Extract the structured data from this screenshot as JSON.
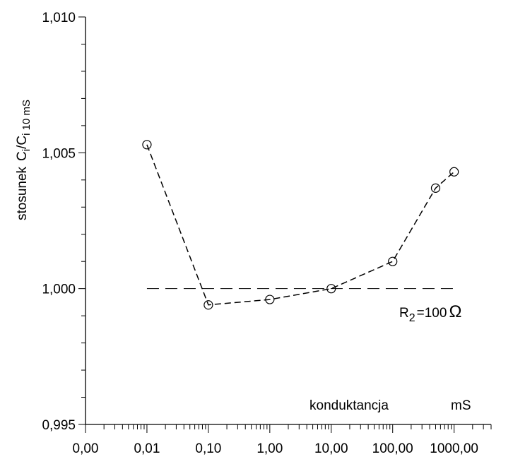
{
  "chart_data": {
    "type": "line",
    "x_scale": "log10",
    "x_ticks": [
      {
        "value": 0.001,
        "label": "0,00"
      },
      {
        "value": 0.01,
        "label": "0,01"
      },
      {
        "value": 0.1,
        "label": "0,10"
      },
      {
        "value": 1,
        "label": "1,00"
      },
      {
        "value": 10,
        "label": "10,00"
      },
      {
        "value": 100,
        "label": "100,00"
      },
      {
        "value": 1000,
        "label": "1000,00"
      }
    ],
    "xlim": [
      0.001,
      4000
    ],
    "ylim": [
      0.995,
      1.01
    ],
    "y_ticks": [
      {
        "value": 0.995,
        "label": "0,995"
      },
      {
        "value": 1.0,
        "label": "1,000"
      },
      {
        "value": 1.005,
        "label": "1,005"
      },
      {
        "value": 1.01,
        "label": "1,010"
      }
    ],
    "y_minor_step": 0.001,
    "ylabel_main": "stosunek",
    "ylabel_c": "C",
    "ylabel_sub1": "i",
    "ylabel_slash": "/C",
    "ylabel_sub2": "i 10 mS",
    "xlabel": "konduktancja",
    "xunit": "mS",
    "series": [
      {
        "style": "dashed",
        "marker": "open-circle",
        "x": [
          0.01,
          0.1,
          1,
          10,
          100,
          500,
          1000
        ],
        "y": [
          1.0053,
          0.9994,
          0.9996,
          1.0,
          1.001,
          1.0037,
          1.0043
        ]
      }
    ],
    "reference_line": {
      "y": 1.0,
      "x_from": 0.01,
      "x_to": 1000,
      "style": "dashed"
    },
    "annotation": {
      "r_main": "R",
      "r_sub": "2",
      "r_rest": "=100",
      "omega": "Ω"
    }
  }
}
